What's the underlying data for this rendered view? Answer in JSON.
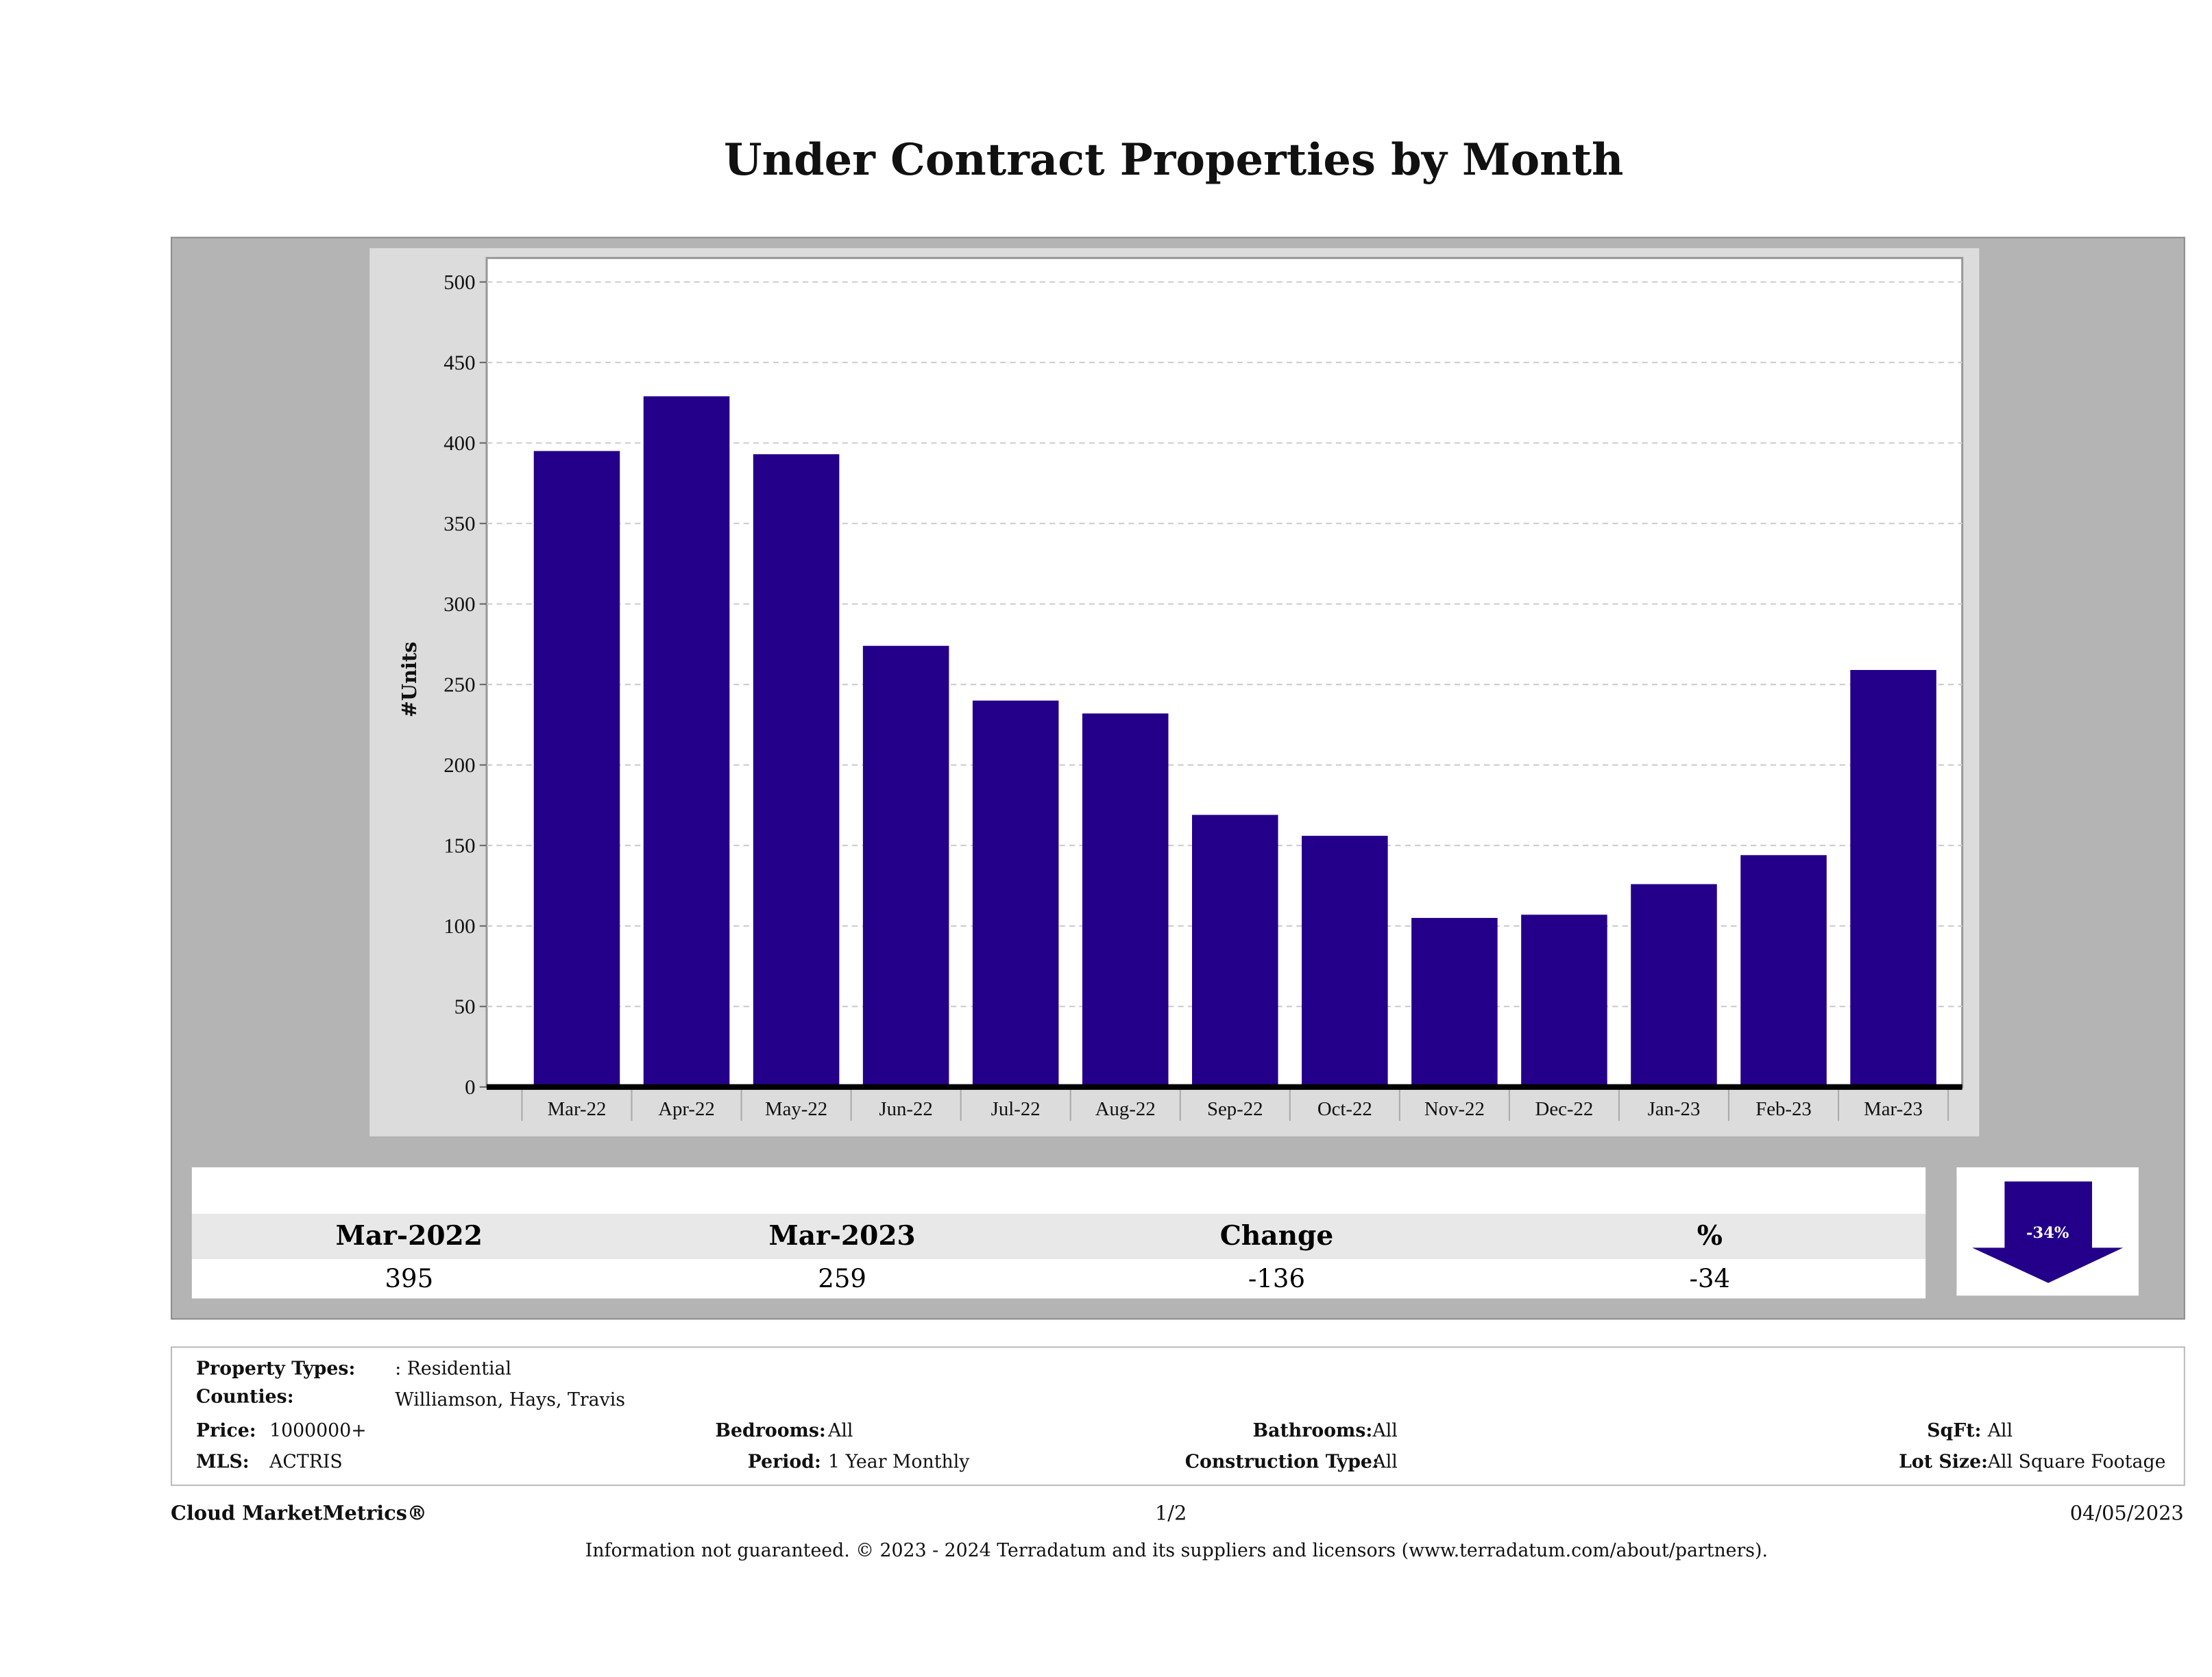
{
  "chart_data": {
    "type": "bar",
    "title": "Under Contract Properties by Month",
    "xlabel": "",
    "ylabel": "#Units",
    "ylim": [
      0,
      500
    ],
    "yticks": [
      0,
      50,
      100,
      150,
      200,
      250,
      300,
      350,
      400,
      450,
      500
    ],
    "grid": true,
    "bar_color": "#24008a",
    "categories": [
      "Mar-22",
      "Apr-22",
      "May-22",
      "Jun-22",
      "Jul-22",
      "Aug-22",
      "Sep-22",
      "Oct-22",
      "Nov-22",
      "Dec-22",
      "Jan-23",
      "Feb-23",
      "Mar-23"
    ],
    "values": [
      395,
      429,
      393,
      274,
      240,
      232,
      169,
      156,
      105,
      107,
      126,
      144,
      259
    ]
  },
  "summary": {
    "headers": [
      "Mar-2022",
      "Mar-2023",
      "Change",
      "%"
    ],
    "values": [
      "395",
      "259",
      "-136",
      "-34"
    ],
    "badge": "-34%",
    "trend_icon": "arrow-down",
    "trend_color": "#24008a"
  },
  "filters": {
    "property_types_label": "Property Types:",
    "property_types": ": Residential",
    "counties_label": "Counties:",
    "counties": "Williamson, Hays, Travis",
    "price_label": "Price:",
    "price": "1000000+",
    "bedrooms_label": "Bedrooms:",
    "bedrooms": "All",
    "bathrooms_label": "Bathrooms:",
    "bathrooms": "All",
    "sqft_label": "SqFt:",
    "sqft": "All",
    "mls_label": "MLS:",
    "mls": "ACTRIS",
    "period_label": "Period:",
    "period": "1 Year Monthly",
    "construction_label": "Construction Type:",
    "construction": "All",
    "lot_label": "Lot Size:",
    "lot": "All Square Footage"
  },
  "footer": {
    "brand": "Cloud MarketMetrics®",
    "page": "1/2",
    "date": "04/05/2023",
    "disclaimer": "Information not guaranteed. © 2023 - 2024 Terradatum and its suppliers and licensors (www.terradatum.com/about/partners)."
  }
}
